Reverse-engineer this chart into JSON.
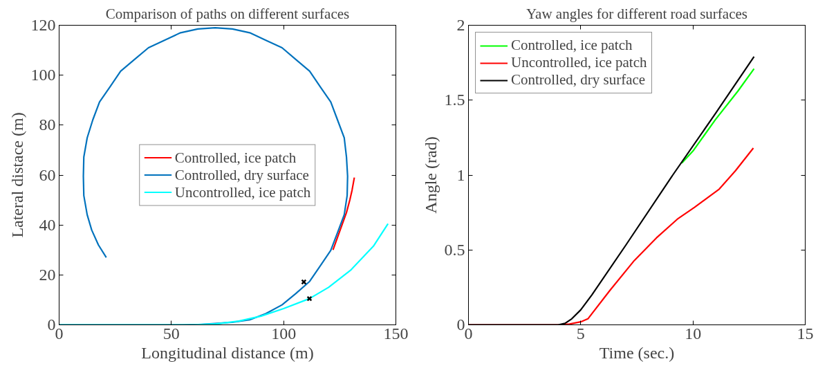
{
  "chart_data": [
    {
      "type": "line",
      "title": "Comparison of paths on different surfaces",
      "xlabel": "Longitudinal distance (m)",
      "ylabel": "Lateral distace (m)",
      "xlim": [
        0,
        150
      ],
      "ylim": [
        0,
        120
      ],
      "xticks": [
        0,
        50,
        100,
        150
      ],
      "yticks": [
        0,
        20,
        40,
        60,
        80,
        100,
        120
      ],
      "grid": false,
      "legend": "center",
      "marker": "none",
      "line_style": "solid",
      "series": [
        {
          "name": "Controlled, ice patch",
          "color": "#ff0000",
          "x": [
            122,
            124,
            126,
            128,
            129.5,
            130.5,
            131.5
          ],
          "values": [
            30,
            35,
            40,
            45,
            50,
            54,
            59
          ]
        },
        {
          "name": "Controlled, dry surface",
          "color": "#0072bd",
          "x": [
            0,
            55,
            62,
            69.5,
            77,
            84.9,
            92.1,
            99.3,
            105.4,
            111.6,
            116.3,
            121,
            124,
            127,
            128.3,
            128.5,
            128,
            127,
            124,
            121,
            116.3,
            111.6,
            105.4,
            99.3,
            92.1,
            84.9,
            77.2,
            69.5,
            61.8,
            54.1,
            46.9,
            39.8,
            33.6,
            27.4,
            22.7,
            18,
            15,
            12.5,
            11,
            10.8,
            11,
            12.5,
            14.5,
            17.5,
            21
          ],
          "values": [
            0,
            0,
            0.1,
            0.5,
            1,
            2,
            4.5,
            8,
            12.5,
            17.4,
            23.6,
            29.8,
            36.9,
            44.1,
            51.8,
            59.5,
            67.2,
            74.9,
            82.1,
            89.3,
            95.4,
            101.6,
            106.3,
            111,
            114,
            117,
            118.5,
            119,
            118.5,
            117,
            114,
            111,
            106.3,
            101.6,
            95.4,
            89.3,
            82.1,
            74.9,
            67.2,
            59.5,
            51.8,
            44.1,
            38,
            32,
            27
          ]
        },
        {
          "name": "Uncontrolled, ice patch",
          "color": "#00ffff",
          "x": [
            0,
            60,
            70,
            80,
            90,
            100,
            111.5,
            120,
            130,
            140,
            146.5
          ],
          "values": [
            0,
            0,
            0.4,
            1.5,
            3.5,
            6.5,
            10.5,
            15,
            22,
            31.5,
            40.5
          ]
        },
        {
          "type": "scatter",
          "marker": "cross",
          "color": "#000000",
          "x": [
            109,
            111.5
          ],
          "values": [
            17.2,
            10.5
          ]
        }
      ]
    },
    {
      "type": "line",
      "title": "Yaw angles for different road surfaces",
      "xlabel": "Time (sec.)",
      "ylabel": "Angle (rad)",
      "xlim": [
        0,
        15
      ],
      "ylim": [
        0,
        2
      ],
      "xticks": [
        0,
        5,
        10,
        15
      ],
      "yticks": [
        0,
        0.5,
        1,
        1.5,
        2
      ],
      "grid": false,
      "legend": "top left",
      "marker": "none",
      "line_style": "solid",
      "series": [
        {
          "name": "Controlled, ice patch",
          "color": "#00ff00",
          "x": [
            9.5,
            10,
            11,
            12,
            12.72
          ],
          "values": [
            1.08,
            1.16,
            1.37,
            1.56,
            1.71
          ]
        },
        {
          "name": "Uncontrolled, ice patch",
          "color": "#ff0000",
          "x": [
            0,
            4,
            4.5,
            5,
            5.32,
            6.3,
            7.39,
            8.37,
            9.34,
            10.07,
            11.17,
            11.9,
            12.69
          ],
          "values": [
            0,
            0,
            0.005,
            0.02,
            0.04,
            0.23,
            0.43,
            0.58,
            0.71,
            0.785,
            0.906,
            1.03,
            1.18
          ]
        },
        {
          "name": "Controlled, dry surface",
          "color": "#000000",
          "x": [
            0,
            4,
            4.3,
            4.6,
            5,
            5.5,
            7,
            9.1,
            11,
            12.72
          ],
          "values": [
            0,
            0,
            0.01,
            0.04,
            0.1,
            0.2,
            0.53,
            1.0,
            1.41,
            1.79
          ]
        }
      ]
    }
  ]
}
